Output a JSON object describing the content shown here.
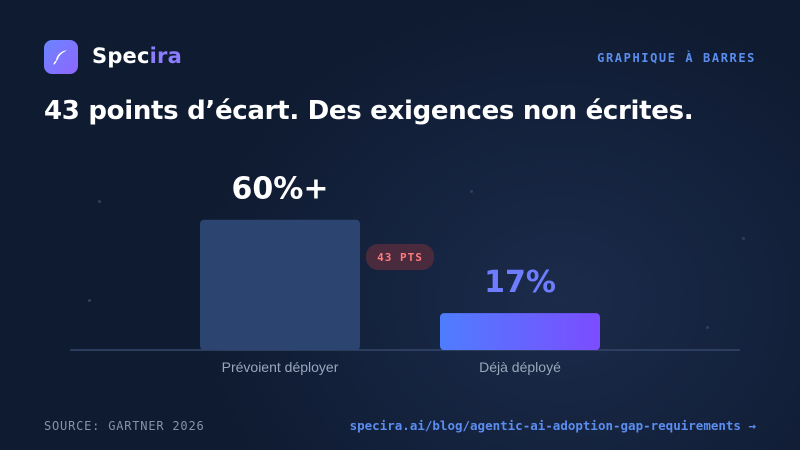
{
  "header": {
    "brand_part1": "Spec",
    "brand_part2": "ira",
    "tag": "GRAPHIQUE À BARRES",
    "title": "43 points d’écart. Des exigences non écrites."
  },
  "footer": {
    "source": "SOURCE: GARTNER 2026",
    "link": "specira.ai/blog/agentic-ai-adoption-gap-requirements →"
  },
  "colors": {
    "bar1": "#2b4570",
    "bar2_start": "#4f7dff",
    "bar2_end": "#7b4dff",
    "gap_badge_bg": "#4a2b3d",
    "gap_badge_text": "#ff7b7b",
    "value2_text": "#6e7dff"
  },
  "chart_data": {
    "type": "bar",
    "categories": [
      "Prévoient déployer",
      "Déjà déployé"
    ],
    "values": [
      60,
      17
    ],
    "value_labels": [
      "60%+",
      "17%"
    ],
    "gap_label": "43 PTS",
    "ylim": [
      0,
      70
    ],
    "grid": false
  }
}
